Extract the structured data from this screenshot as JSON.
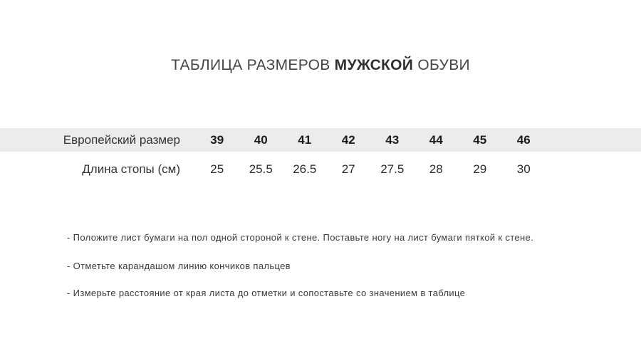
{
  "page": {
    "title": {
      "prefix": "ТАБЛИЦА РАЗМЕРОВ ",
      "highlight": "МУЖСКОЙ",
      "suffix": " ОБУВИ"
    },
    "colors": {
      "highlight_row_bg": "#ececec",
      "title_text": "#454545",
      "body_text": "#333333"
    }
  },
  "size_table": {
    "rows": [
      {
        "label": "Европейский размер",
        "values": [
          "39",
          "40",
          "41",
          "42",
          "43",
          "44",
          "45",
          "46"
        ]
      },
      {
        "label": "Длина стопы (см)",
        "values": [
          "25",
          "25.5",
          "26.5",
          "27",
          "27.5",
          "28",
          "29",
          "30"
        ]
      }
    ]
  },
  "instructions": [
    "- Положите лист бумаги на пол одной стороной к стене. Поставьте ногу на лист бумаги пяткой к стене.",
    "- Отметьте карандашом линию кончиков пальцев",
    "- Измерьте расстояние от края листа до отметки и сопоставьте со значением в таблице"
  ]
}
